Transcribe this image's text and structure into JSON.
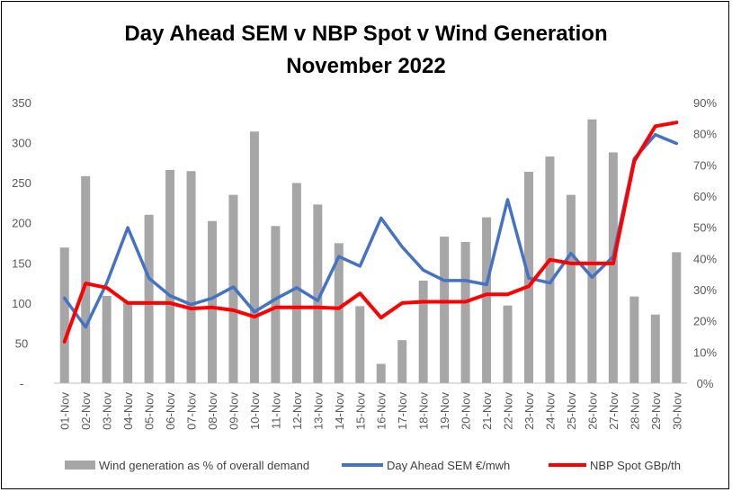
{
  "chart_data": {
    "type": "bar",
    "title": "Day Ahead SEM v NBP Spot v Wind Generation",
    "subtitle": "November 2022",
    "categories": [
      "01-Nov",
      "02-Nov",
      "03-Nov",
      "04-Nov",
      "05-Nov",
      "06-Nov",
      "07-Nov",
      "08-Nov",
      "09-Nov",
      "10-Nov",
      "11-Nov",
      "12-Nov",
      "13-Nov",
      "14-Nov",
      "15-Nov",
      "16-Nov",
      "17-Nov",
      "18-Nov",
      "19-Nov",
      "20-Nov",
      "21-Nov",
      "22-Nov",
      "23-Nov",
      "24-Nov",
      "25-Nov",
      "26-Nov",
      "27-Nov",
      "28-Nov",
      "29-Nov",
      "30-Nov"
    ],
    "left_axis": {
      "ylim": [
        0,
        350
      ],
      "ticks": [
        "-",
        "50",
        "100",
        "150",
        "200",
        "250",
        "300",
        "350"
      ]
    },
    "right_axis": {
      "ylim": [
        0,
        90
      ],
      "ticks": [
        "0%",
        "10%",
        "20%",
        "30%",
        "40%",
        "50%",
        "60%",
        "70%",
        "80%",
        "90%"
      ]
    },
    "gridlines": false,
    "legend_position": "bottom",
    "series": [
      {
        "name": "Wind generation as % of overall demand",
        "type": "bar",
        "axis": "right",
        "color": "#a6a6a6",
        "values": [
          43.5,
          66.4,
          28.0,
          26.0,
          54.0,
          68.4,
          68.0,
          52.0,
          60.4,
          80.7,
          50.4,
          64.2,
          57.3,
          44.9,
          24.7,
          6.2,
          13.8,
          32.9,
          47.0,
          45.3,
          53.2,
          24.9,
          67.8,
          72.7,
          60.4,
          84.6,
          74.0,
          27.8,
          22.0,
          42.0
        ]
      },
      {
        "name": "Day Ahead SEM €/mwh",
        "type": "line",
        "axis": "left",
        "color": "#4472c4",
        "values": [
          106,
          70,
          125,
          194,
          131,
          109,
          98,
          106,
          120,
          89,
          105,
          119,
          103,
          158,
          146,
          206,
          170,
          141,
          128,
          128,
          123,
          229,
          131,
          125,
          162,
          132,
          158,
          280,
          310,
          299
        ]
      },
      {
        "name": "NBP Spot GBp/th",
        "type": "line",
        "axis": "right",
        "color": "#ff0000",
        "values": [
          13.3,
          32.0,
          30.6,
          25.7,
          25.7,
          25.7,
          23.9,
          24.3,
          23.4,
          21.3,
          24.3,
          24.3,
          24.3,
          24.0,
          28.8,
          21.0,
          25.7,
          26.1,
          26.1,
          26.1,
          28.5,
          28.5,
          31.1,
          39.6,
          38.4,
          38.4,
          38.4,
          71.2,
          82.4,
          83.6
        ]
      }
    ]
  }
}
